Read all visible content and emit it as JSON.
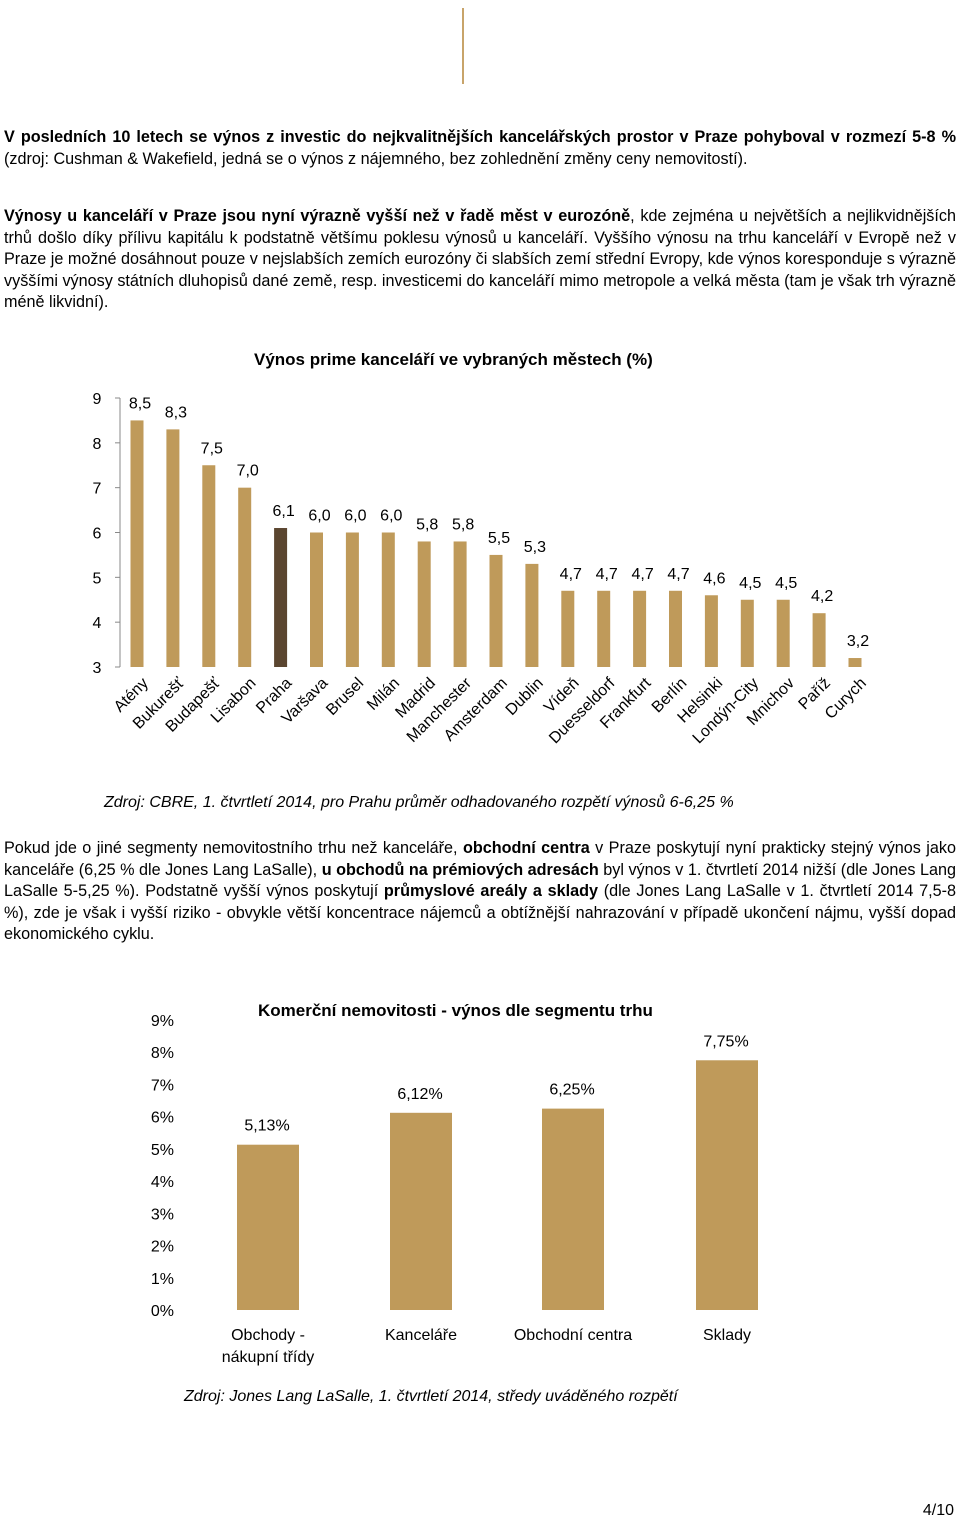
{
  "paragraph1": {
    "bold": "V posledních 10 letech se výnos z investic do nejkvalitnějších kancelářských prostor v Praze pohyboval v rozmezí 5-8 %",
    "rest": " (zdroj: Cushman & Wakefield, jedná se o výnos z nájemného, bez zohlednění změny ceny nemovitostí)."
  },
  "paragraph2": {
    "bold": "Výnosy u kanceláří v Praze jsou nyní výrazně vyšší než v řadě měst v eurozóně",
    "rest": ", kde zejména u největších a nejlikvidnějších trhů došlo díky přílivu kapitálu k podstatně většímu poklesu výnosů u kanceláří. Vyššího výnosu na trhu kanceláří v Evropě než v Praze je možné dosáhnout pouze v nejslabších zemích eurozóny či slabších zemí střední Evropy, kde výnos koresponduje s výrazně vyššími výnosy státních dluhopisů dané země, resp. investicemi do kanceláří mimo metropole a velká města (tam je však trh výrazně méně likvidní)."
  },
  "paragraph3": {
    "t1": "Pokud jde o jiné segmenty nemovitostního trhu než kanceláře, ",
    "b1": "obchodní centra",
    "t2": " v Praze poskytují nyní prakticky stejný výnos jako kanceláře (6,25 % dle Jones Lang LaSalle), ",
    "b2": "u obchodů na prémiových adresách",
    "t3": " byl výnos v 1. čtvrtletí 2014 nižší (dle Jones Lang LaSalle 5-5,25 %). Podstatně vyšší výnos poskytují ",
    "b3": "průmyslové areály a sklady",
    "t4": " (dle Jones Lang LaSalle v 1. čtvrtletí 2014 7,5-8 %), zde je však i vyšší riziko - obvykle větší koncentrace nájemců a obtížnější nahrazování v případě ukončení nájmu, vyšší dopad ekonomického cyklu."
  },
  "chart1_source": "Zdroj: CBRE, 1. čtvrtletí 2014, pro Prahu průměr odhadovaného rozpětí výnosů 6-6,25 %",
  "chart2_source": "Zdroj: Jones Lang LaSalle, 1. čtvrtletí 2014, středy uváděného rozpětí",
  "page_number": "4/10",
  "colors": {
    "bar": "#bf9a5a",
    "highlight": "#5b4630",
    "accent": "#c8a46a"
  },
  "chart_data": [
    {
      "type": "bar",
      "title": "Výnos prime kanceláří ve vybraných městech (%)",
      "categories": [
        "Atény",
        "Bukurešť",
        "Budapešť",
        "Lisabon",
        "Praha",
        "Varšava",
        "Brusel",
        "Milán",
        "Madrid",
        "Manchester",
        "Amsterdam",
        "Dublin",
        "Vídeň",
        "Duesseldorf",
        "Frankfurt",
        "Berlín",
        "Helsinki",
        "Londýn-City",
        "Mnichov",
        "Paříž",
        "Curych"
      ],
      "values": [
        8.5,
        8.3,
        7.5,
        7.0,
        6.1,
        6.0,
        6.0,
        6.0,
        5.8,
        5.8,
        5.5,
        5.3,
        4.7,
        4.7,
        4.7,
        4.7,
        4.6,
        4.5,
        4.5,
        4.2,
        3.2
      ],
      "value_labels": [
        "8,5",
        "8,3",
        "7,5",
        "7,0",
        "6,1",
        "6,0",
        "6,0",
        "6,0",
        "5,8",
        "5,8",
        "5,5",
        "5,3",
        "4,7",
        "4,7",
        "4,7",
        "4,7",
        "4,6",
        "4,5",
        "4,5",
        "4,2",
        "3,2"
      ],
      "highlight": "Praha",
      "y_ticks": [
        "3",
        "4",
        "5",
        "6",
        "7",
        "8",
        "9"
      ],
      "ylim": [
        3,
        9
      ]
    },
    {
      "type": "bar",
      "title": "Komerční nemovitosti - výnos dle segmentu trhu",
      "categories": [
        "Obchody - nákupní třídy",
        "Kanceláře",
        "Obchodní centra",
        "Sklady"
      ],
      "category_lines": [
        [
          "Obchody -",
          "nákupní třídy"
        ],
        [
          "Kanceláře"
        ],
        [
          "Obchodní centra"
        ],
        [
          "Sklady"
        ]
      ],
      "values": [
        5.13,
        6.12,
        6.25,
        7.75
      ],
      "value_labels": [
        "5,13%",
        "6,12%",
        "6,25%",
        "7,75%"
      ],
      "y_ticks": [
        "0%",
        "1%",
        "2%",
        "3%",
        "4%",
        "5%",
        "6%",
        "7%",
        "8%",
        "9%"
      ],
      "ylim": [
        0,
        9
      ]
    }
  ]
}
